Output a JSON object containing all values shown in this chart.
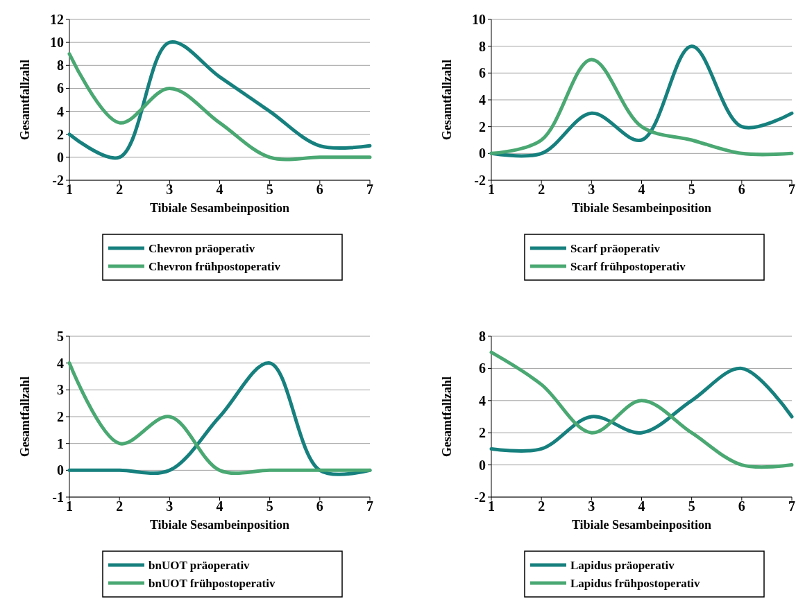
{
  "chart_data": [
    {
      "type": "line",
      "xlabel": "Tibiale Sesambeinposition",
      "ylabel": "Gesamtfallzahl",
      "x": [
        1,
        2,
        3,
        4,
        5,
        6,
        7
      ],
      "xlim": [
        1,
        7
      ],
      "xticks": [
        1,
        2,
        3,
        4,
        5,
        6,
        7
      ],
      "ylim": [
        -2,
        12
      ],
      "yticks": [
        -2,
        0,
        2,
        4,
        6,
        8,
        10,
        12
      ],
      "grid": "y",
      "legend": "bottom",
      "series": [
        {
          "name": "Chevron präoperativ",
          "color": "#16807e",
          "values": [
            2,
            0,
            10,
            7,
            4,
            1,
            1
          ]
        },
        {
          "name": "Chevron frühpostoperativ",
          "color": "#4aa872",
          "values": [
            9,
            3,
            6,
            3,
            0,
            0,
            0
          ]
        }
      ]
    },
    {
      "type": "line",
      "xlabel": "Tibiale Sesambeinposition",
      "ylabel": "Gesamtfallzahl",
      "x": [
        1,
        2,
        3,
        4,
        5,
        6,
        7
      ],
      "xlim": [
        1,
        7
      ],
      "xticks": [
        1,
        2,
        3,
        4,
        5,
        6,
        7
      ],
      "ylim": [
        -2,
        10
      ],
      "yticks": [
        -2,
        0,
        2,
        4,
        6,
        8,
        10
      ],
      "grid": "y",
      "legend": "bottom",
      "series": [
        {
          "name": "Scarf präoperativ",
          "color": "#16807e",
          "values": [
            0,
            0,
            3,
            1,
            8,
            2,
            3
          ]
        },
        {
          "name": "Scarf frühpostoperativ",
          "color": "#4aa872",
          "values": [
            0,
            1,
            7,
            2,
            1,
            0,
            0
          ]
        }
      ]
    },
    {
      "type": "line",
      "xlabel": "Tibiale Sesambeinposition",
      "ylabel": "Gesamtfallzahl",
      "x": [
        1,
        2,
        3,
        4,
        5,
        6,
        7
      ],
      "xlim": [
        1,
        7
      ],
      "xticks": [
        1,
        2,
        3,
        4,
        5,
        6,
        7
      ],
      "ylim": [
        -1,
        5
      ],
      "yticks": [
        -1,
        0,
        1,
        2,
        3,
        4,
        5
      ],
      "grid": "y",
      "legend": "bottom",
      "series": [
        {
          "name": "bnUOT präoperativ",
          "color": "#16807e",
          "values": [
            0,
            0,
            0,
            2,
            4,
            0,
            0
          ]
        },
        {
          "name": "bnUOT frühpostoperativ",
          "color": "#4aa872",
          "values": [
            4,
            1,
            2,
            0,
            0,
            0,
            0
          ]
        }
      ]
    },
    {
      "type": "line",
      "xlabel": "Tibiale Sesambeinposition",
      "ylabel": "Gesamtfallzahl",
      "x": [
        1,
        2,
        3,
        4,
        5,
        6,
        7
      ],
      "xlim": [
        1,
        7
      ],
      "xticks": [
        1,
        2,
        3,
        4,
        5,
        6,
        7
      ],
      "ylim": [
        -2,
        8
      ],
      "yticks": [
        -2,
        0,
        2,
        4,
        6,
        8
      ],
      "grid": "y",
      "legend": "bottom",
      "series": [
        {
          "name": "Lapidus präoperativ",
          "color": "#16807e",
          "values": [
            1,
            1,
            3,
            2,
            4,
            6,
            3
          ]
        },
        {
          "name": "Lapidus frühpostoperativ",
          "color": "#4aa872",
          "values": [
            7,
            5,
            2,
            4,
            2,
            0,
            0
          ]
        }
      ]
    }
  ]
}
